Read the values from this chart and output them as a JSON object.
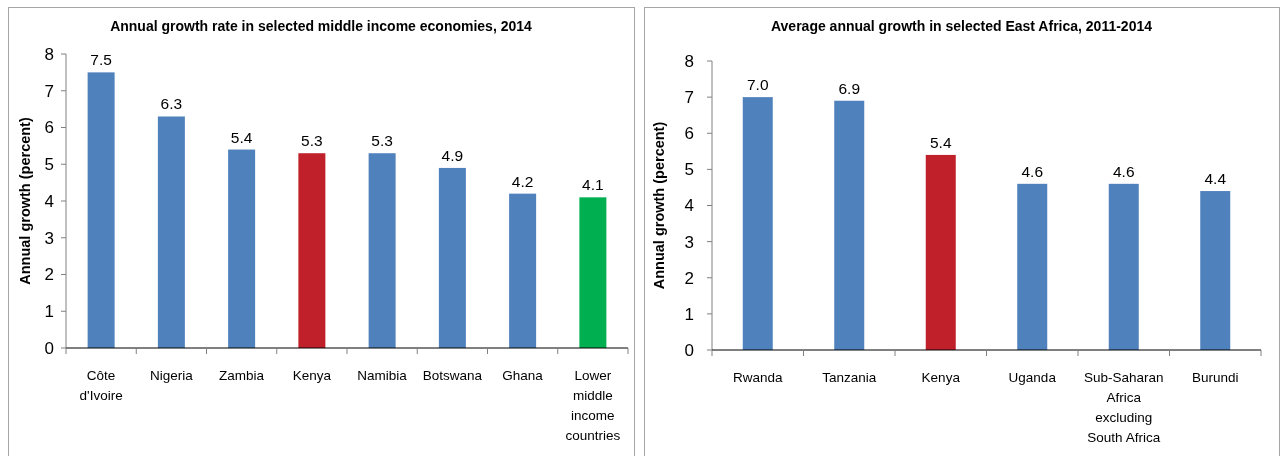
{
  "chart_data": [
    {
      "type": "bar",
      "title": "Annual growth rate in selected middle income economies, 2014",
      "ylabel": "Annual growth (percent)",
      "categories": [
        "Côte d'Ivoire",
        "Nigeria",
        "Zambia",
        "Kenya",
        "Namibia",
        "Botswana",
        "Ghana",
        "Lower middle income countries"
      ],
      "values": [
        7.5,
        6.3,
        5.4,
        5.3,
        5.3,
        4.9,
        4.2,
        4.1
      ],
      "colors": [
        "#4f81bd",
        "#4f81bd",
        "#4f81bd",
        "#c0202a",
        "#4f81bd",
        "#4f81bd",
        "#4f81bd",
        "#00b050"
      ],
      "ylim": [
        0,
        8
      ],
      "yticks": [
        0,
        1,
        2,
        3,
        4,
        5,
        6,
        7,
        8
      ],
      "data_labels": true
    },
    {
      "type": "bar",
      "title": "Average annual growth in selected East Africa, 2011-2014",
      "ylabel": "Annual growth (percent)",
      "categories": [
        "Rwanda",
        "Tanzania",
        "Kenya",
        "Uganda",
        "Sub-Saharan Africa excluding South Africa",
        "Burundi"
      ],
      "values": [
        7.0,
        6.9,
        5.4,
        4.6,
        4.6,
        4.4
      ],
      "colors": [
        "#4f81bd",
        "#4f81bd",
        "#c0202a",
        "#4f81bd",
        "#4f81bd",
        "#4f81bd"
      ],
      "ylim": [
        0,
        8
      ],
      "yticks": [
        0,
        1,
        2,
        3,
        4,
        5,
        6,
        7,
        8
      ],
      "value_labels": [
        "7.0",
        "6.9",
        "5.4",
        "4.6",
        "4.6",
        "4.4"
      ]
    }
  ]
}
